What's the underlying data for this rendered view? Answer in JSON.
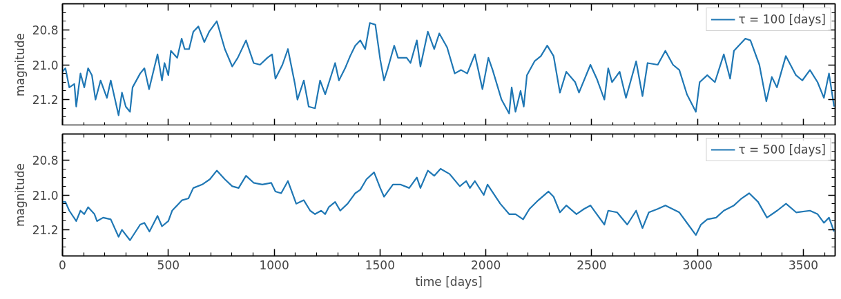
{
  "chart_data": [
    {
      "type": "line",
      "ylabel": "magnitude",
      "legend": "top right",
      "grid": false,
      "tick_labels": "y",
      "xlim": [
        0,
        3650
      ],
      "ylim": [
        21.35,
        20.65
      ],
      "xticks": [
        0,
        500,
        1000,
        1500,
        2000,
        2500,
        3000,
        3500,
        {
          "value": 100,
          "label": null
        },
        {
          "value": 200,
          "label": null
        },
        {
          "value": 300,
          "label": null
        },
        {
          "value": 400,
          "label": null
        },
        {
          "value": 600,
          "label": null
        },
        {
          "value": 700,
          "label": null
        },
        {
          "value": 800,
          "label": null
        },
        {
          "value": 900,
          "label": null
        },
        {
          "value": 1100,
          "label": null
        },
        {
          "value": 1200,
          "label": null
        },
        {
          "value": 1300,
          "label": null
        },
        {
          "value": 1400,
          "label": null
        },
        {
          "value": 1600,
          "label": null
        },
        {
          "value": 1700,
          "label": null
        },
        {
          "value": 1800,
          "label": null
        },
        {
          "value": 1900,
          "label": null
        },
        {
          "value": 2100,
          "label": null
        },
        {
          "value": 2200,
          "label": null
        },
        {
          "value": 2300,
          "label": null
        },
        {
          "value": 2400,
          "label": null
        },
        {
          "value": 2600,
          "label": null
        },
        {
          "value": 2700,
          "label": null
        },
        {
          "value": 2800,
          "label": null
        },
        {
          "value": 2900,
          "label": null
        },
        {
          "value": 3100,
          "label": null
        },
        {
          "value": 3200,
          "label": null
        },
        {
          "value": 3300,
          "label": null
        },
        {
          "value": 3400,
          "label": null
        },
        {
          "value": 3600,
          "label": null
        }
      ],
      "yticks": [
        {
          "value": 20.8,
          "label": "20.8"
        },
        {
          "value": 21.0,
          "label": "21.0"
        },
        {
          "value": 21.2,
          "label": "21.2"
        },
        {
          "value": 20.7,
          "label": null
        },
        {
          "value": 20.75,
          "label": null
        },
        {
          "value": 20.85,
          "label": null
        },
        {
          "value": 20.9,
          "label": null
        },
        {
          "value": 20.95,
          "label": null
        },
        {
          "value": 21.05,
          "label": null
        },
        {
          "value": 21.1,
          "label": null
        },
        {
          "value": 21.15,
          "label": null
        },
        {
          "value": 21.25,
          "label": null
        },
        {
          "value": 21.3,
          "label": null
        }
      ],
      "series": [
        {
          "name": "τ = 100 [days]",
          "color": "#1f77b4",
          "x": [
            0,
            14,
            32,
            56,
            65,
            85,
            103,
            121,
            139,
            156,
            180,
            210,
            228,
            265,
            281,
            299,
            319,
            331,
            367,
            387,
            409,
            449,
            470,
            482,
            500,
            512,
            542,
            563,
            577,
            598,
            618,
            642,
            670,
            693,
            729,
            767,
            802,
            828,
            867,
            903,
            933,
            968,
            990,
            1006,
            1039,
            1065,
            1098,
            1110,
            1140,
            1163,
            1193,
            1217,
            1241,
            1288,
            1306,
            1335,
            1359,
            1383,
            1407,
            1430,
            1452,
            1478,
            1501,
            1519,
            1537,
            1567,
            1585,
            1626,
            1644,
            1674,
            1691,
            1726,
            1756,
            1780,
            1817,
            1853,
            1883,
            1912,
            1948,
            1984,
            2012,
            2032,
            2074,
            2110,
            2122,
            2140,
            2164,
            2179,
            2194,
            2230,
            2260,
            2290,
            2320,
            2350,
            2380,
            2422,
            2440,
            2494,
            2524,
            2560,
            2578,
            2596,
            2632,
            2662,
            2710,
            2740,
            2764,
            2812,
            2848,
            2884,
            2914,
            2950,
            2992,
            3010,
            3046,
            3082,
            3124,
            3154,
            3172,
            3226,
            3250,
            3292,
            3325,
            3351,
            3375,
            3417,
            3465,
            3495,
            3531,
            3567,
            3597,
            3621,
            3645
          ],
          "values": [
            21.04,
            21.02,
            21.13,
            21.11,
            21.24,
            21.05,
            21.13,
            21.02,
            21.06,
            21.2,
            21.09,
            21.19,
            21.09,
            21.29,
            21.16,
            21.24,
            21.27,
            21.13,
            21.05,
            21.02,
            21.14,
            20.94,
            21.09,
            20.99,
            21.06,
            20.92,
            20.96,
            20.85,
            20.91,
            20.91,
            20.81,
            20.78,
            20.87,
            20.81,
            20.75,
            20.91,
            21.01,
            20.96,
            20.86,
            20.99,
            21.0,
            20.96,
            20.94,
            21.08,
            21.0,
            20.91,
            21.11,
            21.2,
            21.09,
            21.24,
            21.25,
            21.09,
            21.17,
            20.99,
            21.09,
            21.02,
            20.95,
            20.89,
            20.86,
            20.91,
            20.76,
            20.77,
            20.97,
            21.09,
            21.02,
            20.89,
            20.96,
            20.96,
            20.99,
            20.86,
            21.01,
            20.81,
            20.91,
            20.82,
            20.9,
            21.05,
            21.03,
            21.05,
            20.94,
            21.14,
            20.96,
            21.03,
            21.2,
            21.28,
            21.13,
            21.27,
            21.15,
            21.24,
            21.06,
            20.98,
            20.95,
            20.89,
            20.95,
            21.16,
            21.04,
            21.1,
            21.16,
            21.0,
            21.08,
            21.2,
            21.02,
            21.1,
            21.04,
            21.19,
            20.98,
            21.18,
            20.99,
            21.0,
            20.92,
            21.0,
            21.03,
            21.17,
            21.27,
            21.1,
            21.06,
            21.1,
            20.94,
            21.08,
            20.92,
            20.85,
            20.86,
            21.0,
            21.21,
            21.07,
            21.13,
            20.95,
            21.06,
            21.09,
            21.03,
            21.1,
            21.19,
            21.05,
            21.24
          ]
        }
      ]
    },
    {
      "type": "line",
      "ylabel": "magnitude",
      "xlabel": "time [days]",
      "legend": "top right",
      "grid": false,
      "xlim": [
        0,
        3650
      ],
      "ylim": [
        21.35,
        20.65
      ],
      "xticks": [
        0,
        500,
        1000,
        1500,
        2000,
        2500,
        3000,
        3500,
        {
          "value": 100,
          "label": null
        },
        {
          "value": 200,
          "label": null
        },
        {
          "value": 300,
          "label": null
        },
        {
          "value": 400,
          "label": null
        },
        {
          "value": 600,
          "label": null
        },
        {
          "value": 700,
          "label": null
        },
        {
          "value": 800,
          "label": null
        },
        {
          "value": 900,
          "label": null
        },
        {
          "value": 1100,
          "label": null
        },
        {
          "value": 1200,
          "label": null
        },
        {
          "value": 1300,
          "label": null
        },
        {
          "value": 1400,
          "label": null
        },
        {
          "value": 1600,
          "label": null
        },
        {
          "value": 1700,
          "label": null
        },
        {
          "value": 1800,
          "label": null
        },
        {
          "value": 1900,
          "label": null
        },
        {
          "value": 2100,
          "label": null
        },
        {
          "value": 2200,
          "label": null
        },
        {
          "value": 2300,
          "label": null
        },
        {
          "value": 2400,
          "label": null
        },
        {
          "value": 2600,
          "label": null
        },
        {
          "value": 2700,
          "label": null
        },
        {
          "value": 2800,
          "label": null
        },
        {
          "value": 2900,
          "label": null
        },
        {
          "value": 3100,
          "label": null
        },
        {
          "value": 3200,
          "label": null
        },
        {
          "value": 3300,
          "label": null
        },
        {
          "value": 3400,
          "label": null
        },
        {
          "value": 3600,
          "label": null
        }
      ],
      "yticks": [
        {
          "value": 20.8,
          "label": "20.8"
        },
        {
          "value": 21.0,
          "label": "21.0"
        },
        {
          "value": 21.2,
          "label": "21.2"
        },
        {
          "value": 20.7,
          "label": null
        },
        {
          "value": 20.75,
          "label": null
        },
        {
          "value": 20.85,
          "label": null
        },
        {
          "value": 20.9,
          "label": null
        },
        {
          "value": 20.95,
          "label": null
        },
        {
          "value": 21.05,
          "label": null
        },
        {
          "value": 21.1,
          "label": null
        },
        {
          "value": 21.15,
          "label": null
        },
        {
          "value": 21.25,
          "label": null
        },
        {
          "value": 21.3,
          "label": null
        }
      ],
      "series": [
        {
          "name": "τ = 500 [days]",
          "color": "#1f77b4",
          "x": [
            0,
            14,
            32,
            65,
            85,
            103,
            121,
            151,
            163,
            192,
            228,
            265,
            281,
            319,
            367,
            387,
            411,
            449,
            470,
            500,
            518,
            565,
            595,
            618,
            660,
            696,
            729,
            767,
            802,
            832,
            867,
            903,
            944,
            986,
            1006,
            1033,
            1065,
            1086,
            1104,
            1140,
            1170,
            1193,
            1222,
            1241,
            1258,
            1288,
            1312,
            1347,
            1383,
            1407,
            1436,
            1472,
            1501,
            1519,
            1561,
            1596,
            1638,
            1674,
            1691,
            1726,
            1756,
            1786,
            1829,
            1877,
            1907,
            1925,
            1948,
            1990,
            2008,
            2068,
            2110,
            2140,
            2176,
            2206,
            2248,
            2296,
            2320,
            2350,
            2380,
            2428,
            2464,
            2494,
            2524,
            2560,
            2578,
            2620,
            2668,
            2710,
            2740,
            2770,
            2812,
            2848,
            2914,
            2956,
            2992,
            3016,
            3046,
            3088,
            3124,
            3172,
            3208,
            3244,
            3286,
            3328,
            3376,
            3418,
            3466,
            3531,
            3567,
            3597,
            3621,
            3645
          ],
          "values": [
            21.04,
            21.04,
            21.09,
            21.15,
            21.09,
            21.11,
            21.07,
            21.11,
            21.15,
            21.13,
            21.14,
            21.24,
            21.2,
            21.26,
            21.17,
            21.16,
            21.21,
            21.12,
            21.18,
            21.15,
            21.09,
            21.03,
            21.02,
            20.96,
            20.94,
            20.91,
            20.86,
            20.91,
            20.95,
            20.96,
            20.89,
            20.93,
            20.94,
            20.93,
            20.98,
            20.99,
            20.92,
            20.99,
            21.05,
            21.03,
            21.09,
            21.11,
            21.09,
            21.11,
            21.07,
            21.04,
            21.09,
            21.05,
            20.99,
            20.97,
            20.91,
            20.87,
            20.96,
            21.01,
            20.94,
            20.94,
            20.96,
            20.9,
            20.96,
            20.86,
            20.89,
            20.85,
            20.88,
            20.95,
            20.92,
            20.96,
            20.92,
            21.0,
            20.94,
            21.05,
            21.11,
            21.11,
            21.14,
            21.08,
            21.03,
            20.98,
            21.01,
            21.1,
            21.06,
            21.11,
            21.08,
            21.06,
            21.11,
            21.17,
            21.09,
            21.1,
            21.17,
            21.09,
            21.19,
            21.1,
            21.08,
            21.06,
            21.1,
            21.17,
            21.23,
            21.17,
            21.14,
            21.13,
            21.09,
            21.06,
            21.02,
            20.99,
            21.04,
            21.13,
            21.09,
            21.05,
            21.1,
            21.09,
            21.11,
            21.16,
            21.13,
            21.21
          ]
        }
      ]
    }
  ]
}
